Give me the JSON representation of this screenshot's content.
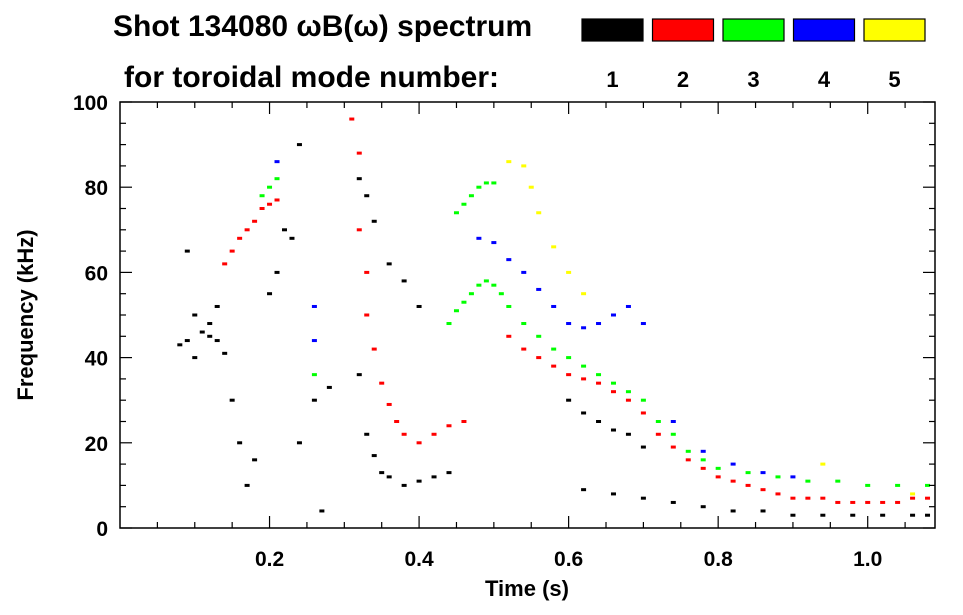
{
  "chart_data": {
    "type": "scatter",
    "title_line1": "Shot 134080 ωB(ω) spectrum",
    "title_line2": "for toroidal mode number:",
    "xlabel": "Time (s)",
    "ylabel": "Frequency (kHz)",
    "xlim": [
      0.0,
      1.09
    ],
    "ylim": [
      0,
      100
    ],
    "x_ticks": [
      0.2,
      0.4,
      0.6,
      0.8,
      1.0
    ],
    "x_tick_labels": [
      "0.2",
      "0.4",
      "0.6",
      "0.8",
      "1.0"
    ],
    "y_ticks": [
      0,
      20,
      40,
      60,
      80,
      100
    ],
    "y_tick_labels": [
      "0",
      "20",
      "40",
      "60",
      "80",
      "100"
    ],
    "legend": {
      "placement": "top-right",
      "entries": [
        {
          "label": "1",
          "color": "#000000"
        },
        {
          "label": "2",
          "color": "#ff0000"
        },
        {
          "label": "3",
          "color": "#00ff00"
        },
        {
          "label": "4",
          "color": "#0000ff"
        },
        {
          "label": "5",
          "color": "#ffff00"
        }
      ]
    },
    "series": [
      {
        "name": "1",
        "color": "#000000",
        "points": [
          [
            0.08,
            43
          ],
          [
            0.09,
            44
          ],
          [
            0.1,
            40
          ],
          [
            0.11,
            46
          ],
          [
            0.12,
            45
          ],
          [
            0.13,
            44
          ],
          [
            0.14,
            41
          ],
          [
            0.1,
            50
          ],
          [
            0.12,
            48
          ],
          [
            0.13,
            52
          ],
          [
            0.09,
            65
          ],
          [
            0.15,
            30
          ],
          [
            0.16,
            20
          ],
          [
            0.17,
            10
          ],
          [
            0.18,
            16
          ],
          [
            0.2,
            55
          ],
          [
            0.21,
            60
          ],
          [
            0.22,
            70
          ],
          [
            0.23,
            68
          ],
          [
            0.24,
            90
          ],
          [
            0.24,
            20
          ],
          [
            0.26,
            30
          ],
          [
            0.28,
            33
          ],
          [
            0.27,
            4
          ],
          [
            0.32,
            82
          ],
          [
            0.33,
            78
          ],
          [
            0.34,
            72
          ],
          [
            0.36,
            62
          ],
          [
            0.38,
            58
          ],
          [
            0.4,
            52
          ],
          [
            0.32,
            36
          ],
          [
            0.33,
            22
          ],
          [
            0.34,
            17
          ],
          [
            0.35,
            13
          ],
          [
            0.36,
            12
          ],
          [
            0.38,
            10
          ],
          [
            0.4,
            11
          ],
          [
            0.42,
            12
          ],
          [
            0.44,
            13
          ],
          [
            0.6,
            30
          ],
          [
            0.62,
            27
          ],
          [
            0.64,
            25
          ],
          [
            0.66,
            23
          ],
          [
            0.68,
            22
          ],
          [
            0.7,
            19
          ],
          [
            0.62,
            9
          ],
          [
            0.66,
            8
          ],
          [
            0.7,
            7
          ],
          [
            0.74,
            6
          ],
          [
            0.78,
            5
          ],
          [
            0.82,
            4
          ],
          [
            0.86,
            4
          ],
          [
            0.9,
            3
          ],
          [
            0.94,
            3
          ],
          [
            0.98,
            3
          ],
          [
            1.02,
            3
          ],
          [
            1.06,
            3
          ],
          [
            1.08,
            3
          ]
        ]
      },
      {
        "name": "2",
        "color": "#ff0000",
        "points": [
          [
            0.14,
            62
          ],
          [
            0.15,
            65
          ],
          [
            0.16,
            68
          ],
          [
            0.17,
            70
          ],
          [
            0.18,
            72
          ],
          [
            0.19,
            75
          ],
          [
            0.2,
            76
          ],
          [
            0.21,
            77
          ],
          [
            0.31,
            96
          ],
          [
            0.32,
            88
          ],
          [
            0.32,
            70
          ],
          [
            0.33,
            60
          ],
          [
            0.33,
            50
          ],
          [
            0.34,
            42
          ],
          [
            0.35,
            34
          ],
          [
            0.36,
            29
          ],
          [
            0.37,
            25
          ],
          [
            0.38,
            22
          ],
          [
            0.4,
            20
          ],
          [
            0.42,
            22
          ],
          [
            0.44,
            24
          ],
          [
            0.46,
            25
          ],
          [
            0.52,
            45
          ],
          [
            0.54,
            42
          ],
          [
            0.56,
            40
          ],
          [
            0.58,
            38
          ],
          [
            0.6,
            36
          ],
          [
            0.62,
            35
          ],
          [
            0.64,
            34
          ],
          [
            0.66,
            32
          ],
          [
            0.68,
            30
          ],
          [
            0.7,
            27
          ],
          [
            0.72,
            22
          ],
          [
            0.74,
            19
          ],
          [
            0.76,
            16
          ],
          [
            0.78,
            14
          ],
          [
            0.8,
            12
          ],
          [
            0.82,
            11
          ],
          [
            0.84,
            10
          ],
          [
            0.86,
            9
          ],
          [
            0.88,
            8
          ],
          [
            0.9,
            7
          ],
          [
            0.92,
            7
          ],
          [
            0.94,
            7
          ],
          [
            0.96,
            6
          ],
          [
            0.98,
            6
          ],
          [
            1.0,
            6
          ],
          [
            1.02,
            6
          ],
          [
            1.04,
            6
          ],
          [
            1.06,
            7
          ],
          [
            1.08,
            7
          ]
        ]
      },
      {
        "name": "3",
        "color": "#00ff00",
        "points": [
          [
            0.19,
            78
          ],
          [
            0.2,
            80
          ],
          [
            0.21,
            82
          ],
          [
            0.26,
            36
          ],
          [
            0.45,
            74
          ],
          [
            0.46,
            76
          ],
          [
            0.47,
            78
          ],
          [
            0.48,
            80
          ],
          [
            0.49,
            81
          ],
          [
            0.5,
            81
          ],
          [
            0.44,
            48
          ],
          [
            0.45,
            51
          ],
          [
            0.46,
            53
          ],
          [
            0.47,
            55
          ],
          [
            0.48,
            57
          ],
          [
            0.49,
            58
          ],
          [
            0.5,
            57
          ],
          [
            0.51,
            55
          ],
          [
            0.52,
            52
          ],
          [
            0.54,
            48
          ],
          [
            0.56,
            45
          ],
          [
            0.58,
            42
          ],
          [
            0.6,
            40
          ],
          [
            0.62,
            38
          ],
          [
            0.64,
            36
          ],
          [
            0.66,
            34
          ],
          [
            0.68,
            32
          ],
          [
            0.7,
            30
          ],
          [
            0.72,
            25
          ],
          [
            0.74,
            22
          ],
          [
            0.76,
            18
          ],
          [
            0.78,
            16
          ],
          [
            0.8,
            14
          ],
          [
            0.84,
            13
          ],
          [
            0.88,
            12
          ],
          [
            0.92,
            11
          ],
          [
            0.96,
            11
          ],
          [
            1.0,
            10
          ],
          [
            1.04,
            10
          ],
          [
            1.08,
            10
          ]
        ]
      },
      {
        "name": "4",
        "color": "#0000ff",
        "points": [
          [
            0.21,
            86
          ],
          [
            0.26,
            52
          ],
          [
            0.26,
            44
          ],
          [
            0.48,
            68
          ],
          [
            0.5,
            67
          ],
          [
            0.52,
            63
          ],
          [
            0.54,
            60
          ],
          [
            0.56,
            56
          ],
          [
            0.58,
            52
          ],
          [
            0.6,
            48
          ],
          [
            0.62,
            47
          ],
          [
            0.64,
            48
          ],
          [
            0.66,
            50
          ],
          [
            0.68,
            52
          ],
          [
            0.7,
            48
          ],
          [
            0.74,
            25
          ],
          [
            0.78,
            18
          ],
          [
            0.82,
            15
          ],
          [
            0.86,
            13
          ],
          [
            0.9,
            12
          ]
        ]
      },
      {
        "name": "5",
        "color": "#ffff00",
        "points": [
          [
            0.52,
            86
          ],
          [
            0.54,
            85
          ],
          [
            0.55,
            80
          ],
          [
            0.56,
            74
          ],
          [
            0.58,
            66
          ],
          [
            0.6,
            60
          ],
          [
            0.62,
            55
          ],
          [
            0.94,
            15
          ],
          [
            1.06,
            8
          ]
        ]
      }
    ]
  }
}
